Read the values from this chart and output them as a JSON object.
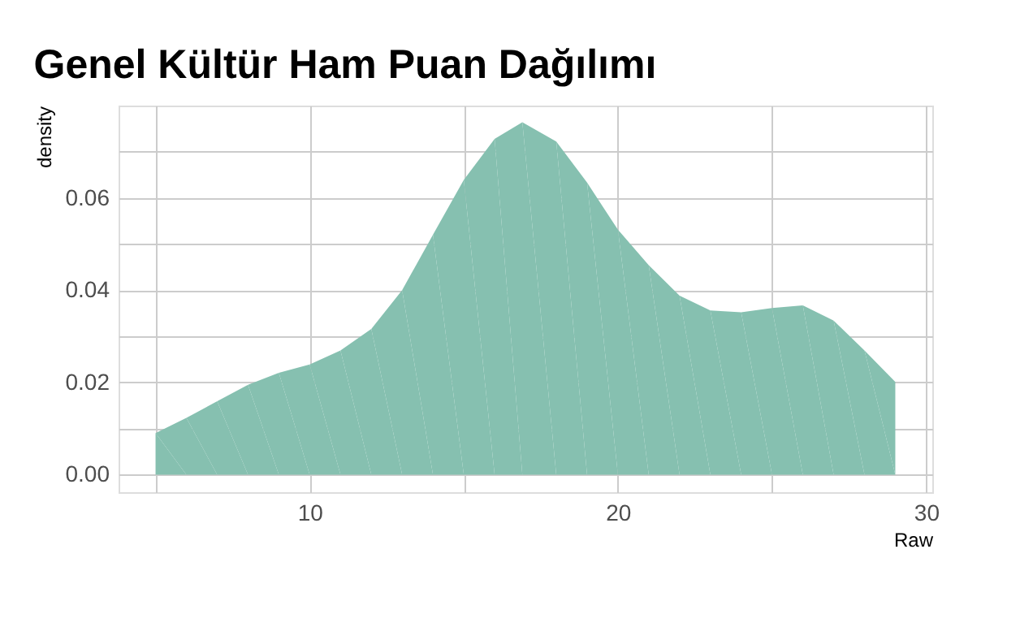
{
  "chart_data": {
    "type": "area",
    "title": "Genel Kültür Ham Puan Dağılımı",
    "xlabel": "Raw",
    "ylabel": "density",
    "x": [
      5,
      6,
      7,
      8,
      9,
      10,
      11,
      12,
      13,
      14,
      15,
      16,
      16.9,
      18,
      19,
      20,
      21,
      22,
      23,
      24,
      25,
      26,
      27,
      28,
      29
    ],
    "series": [
      {
        "color": "#86c0b0",
        "values": [
          0.009,
          0.0123,
          0.0159,
          0.0195,
          0.0221,
          0.0239,
          0.0269,
          0.0316,
          0.04,
          0.052,
          0.0639,
          0.0728,
          0.0764,
          0.0722,
          0.0633,
          0.0531,
          0.0454,
          0.0388,
          0.0356,
          0.0352,
          0.0361,
          0.0367,
          0.0334,
          0.0269,
          0.0201
        ]
      }
    ],
    "xlim": [
      3.8,
      30.2
    ],
    "ylim": [
      -0.0038,
      0.08
    ],
    "xticks": [
      {
        "value": 5,
        "label": null
      },
      10,
      {
        "value": 15,
        "label": null
      },
      20,
      {
        "value": 25,
        "label": null
      },
      30
    ],
    "yticks": [
      {
        "value": 0,
        "label": "0.00"
      },
      {
        "value": 0.01,
        "label": null
      },
      0.02,
      {
        "value": 0.03,
        "label": null
      },
      0.04,
      {
        "value": 0.05,
        "label": null
      },
      0.06,
      {
        "value": 0.07,
        "label": null
      }
    ],
    "grid": true
  }
}
